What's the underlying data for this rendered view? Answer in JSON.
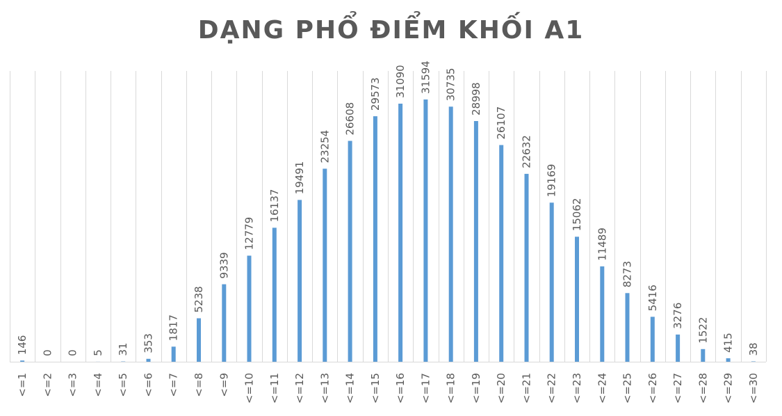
{
  "chart_data": {
    "type": "bar",
    "title": "DẠNG PHỔ ĐIỂM KHỐI A1",
    "categories": [
      "<=1",
      "<=2",
      "<=3",
      "<=4",
      "<=5",
      "<=6",
      "<=7",
      "<=8",
      "<=9",
      "<=10",
      "<=11",
      "<=12",
      "<=13",
      "<=14",
      "<=15",
      "<=16",
      "<=17",
      "<=18",
      "<=19",
      "<=20",
      "<=21",
      "<=22",
      "<=23",
      "<=24",
      "<=25",
      "<=26",
      "<=27",
      "<=28",
      "<=29",
      "<=30"
    ],
    "values": [
      146,
      0,
      0,
      5,
      31,
      353,
      1817,
      5238,
      9339,
      12779,
      16137,
      19491,
      23254,
      26608,
      29573,
      31090,
      31594,
      30735,
      28998,
      26107,
      22632,
      19169,
      15062,
      11489,
      8273,
      5416,
      3276,
      1522,
      415,
      38
    ],
    "xlabel": "",
    "ylabel": "",
    "ylim": [
      0,
      35000
    ],
    "bar_color": "#5b9bd5",
    "grid": "vertical category separators",
    "data_labels": "rotated vertical above bars",
    "legend": "none"
  }
}
